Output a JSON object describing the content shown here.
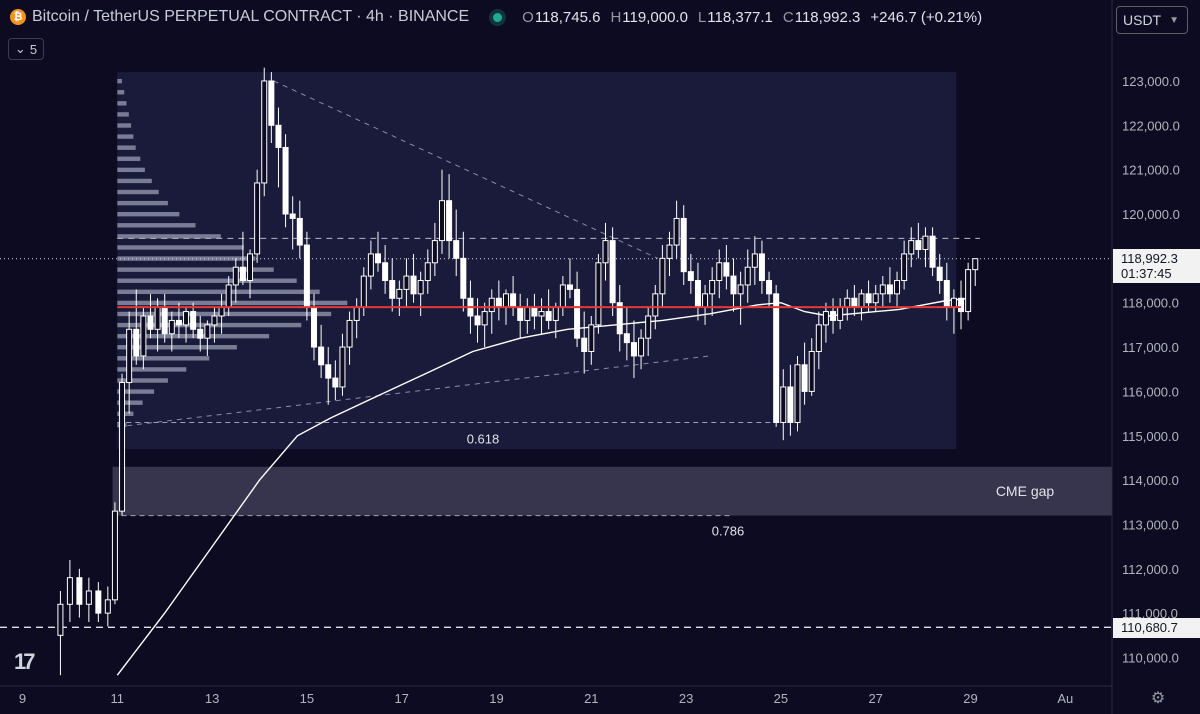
{
  "header": {
    "coin_symbol": "₿",
    "title": "Bitcoin / TetherUS PERPETUAL CONTRACT · 4h · BINANCE",
    "open_label": "O",
    "open": "118,745.6",
    "high_label": "H",
    "high": "119,000.0",
    "low_label": "L",
    "low": "118,377.1",
    "close_label": "C",
    "close": "118,992.3",
    "change": "+246.7 (+0.21%)"
  },
  "toolbar": {
    "collapse_count": "5",
    "currency": "USDT"
  },
  "price_tag": {
    "price": "118,992.3",
    "countdown": "01:37:45"
  },
  "level_tag": {
    "price": "110,680.7"
  },
  "colors": {
    "background": "#0c0b22",
    "candle": "#ffffff",
    "poc_line": "#e53935",
    "cme_zone": "#3e3d55"
  },
  "chart_data": {
    "type": "candlestick",
    "timeframe": "4h",
    "x_ticks": [
      "9",
      "11",
      "13",
      "15",
      "17",
      "19",
      "21",
      "23",
      "25",
      "27",
      "29",
      "Au"
    ],
    "y_ticks": [
      110000,
      111000,
      112000,
      113000,
      114000,
      115000,
      116000,
      117000,
      118000,
      119000,
      120000,
      121000,
      122000,
      123000
    ],
    "y_tick_labels": [
      "110,000.0",
      "111,000.0",
      "112,000.0",
      "113,000.0",
      "114,000.0",
      "115,000.0",
      "116,000.0",
      "117,000.0",
      "118,000.0",
      "119,000.0",
      "120,000.0",
      "121,000.0",
      "122,000.0",
      "123,000.0"
    ],
    "ylim": [
      109600,
      124000
    ],
    "xlim": [
      9,
      31.6
    ],
    "annotations": {
      "cme_gap": {
        "label": "CME gap",
        "from": 113200,
        "to": 114300,
        "start_day": 10.9
      },
      "fib_0618": {
        "label": "0.618",
        "price": 115300,
        "from_day": 11,
        "to_day": 25
      },
      "fib_0786": {
        "label": "0.786",
        "price": 113200,
        "from_day": 10.9,
        "to_day": 24
      },
      "resistance_dashed": {
        "price": 119450,
        "from_day": 11,
        "to_day": 29.2
      },
      "poc_line": {
        "price": 117900,
        "from_day": 11,
        "to_day": 28.8
      },
      "level_dashed": {
        "price": 110680.7
      },
      "last_price_dotted": {
        "price": 118992.3
      },
      "range_box": {
        "from_day": 11,
        "to_day": 28.7,
        "top": 123200,
        "bottom": 114700
      },
      "trend_top": {
        "from": [
          14.3,
          123000
        ],
        "to": [
          22.4,
          119000
        ]
      },
      "trend_bottom": {
        "from": [
          11,
          115200
        ],
        "to": [
          23.5,
          116800
        ]
      }
    },
    "moving_average": [
      [
        11,
        109600
      ],
      [
        12,
        111000
      ],
      [
        13,
        112500
      ],
      [
        14,
        114000
      ],
      [
        14.8,
        115000
      ],
      [
        15.5,
        115400
      ],
      [
        16.5,
        115900
      ],
      [
        17.5,
        116400
      ],
      [
        18.5,
        116900
      ],
      [
        19.5,
        117200
      ],
      [
        20.5,
        117400
      ],
      [
        21.5,
        117500
      ],
      [
        22.5,
        117600
      ],
      [
        23.5,
        117750
      ],
      [
        24.5,
        117950
      ],
      [
        25,
        118000
      ],
      [
        25.5,
        117800
      ],
      [
        26,
        117700
      ],
      [
        26.5,
        117750
      ],
      [
        27,
        117800
      ],
      [
        27.5,
        117850
      ],
      [
        28,
        117950
      ],
      [
        28.5,
        118050
      ],
      [
        29,
        118100
      ]
    ],
    "candles": [
      [
        9.8,
        110500,
        111500,
        109600,
        111200
      ],
      [
        10,
        111200,
        112200,
        110800,
        111800
      ],
      [
        10.2,
        111800,
        112000,
        110900,
        111200
      ],
      [
        10.4,
        111200,
        111800,
        110800,
        111500
      ],
      [
        10.6,
        111500,
        111700,
        110800,
        111000
      ],
      [
        10.8,
        111000,
        111600,
        110700,
        111300
      ],
      [
        10.95,
        111300,
        113500,
        111200,
        113300
      ],
      [
        11.1,
        113300,
        116400,
        113200,
        116200
      ],
      [
        11.25,
        116200,
        117800,
        115500,
        117400
      ],
      [
        11.4,
        117400,
        118300,
        116600,
        116800
      ],
      [
        11.55,
        116800,
        117900,
        116500,
        117700
      ],
      [
        11.7,
        117700,
        118200,
        117200,
        117400
      ],
      [
        11.85,
        117400,
        118100,
        116900,
        117900
      ],
      [
        12,
        117900,
        118200,
        117100,
        117300
      ],
      [
        12.15,
        117300,
        117800,
        116900,
        117600
      ],
      [
        12.3,
        117600,
        118000,
        117200,
        117500
      ],
      [
        12.45,
        117500,
        117900,
        117100,
        117800
      ],
      [
        12.6,
        117800,
        118000,
        117200,
        117400
      ],
      [
        12.75,
        117400,
        117700,
        116900,
        117200
      ],
      [
        12.9,
        117200,
        117600,
        116800,
        117500
      ],
      [
        13.05,
        117500,
        117900,
        117100,
        117700
      ],
      [
        13.2,
        117700,
        118200,
        117300,
        117900
      ],
      [
        13.35,
        117900,
        118600,
        117700,
        118400
      ],
      [
        13.5,
        118400,
        119000,
        118000,
        118800
      ],
      [
        13.65,
        118800,
        119600,
        118400,
        118500
      ],
      [
        13.8,
        118500,
        119200,
        118100,
        119100
      ],
      [
        13.95,
        119100,
        121000,
        118900,
        120700
      ],
      [
        14.1,
        120700,
        123300,
        120400,
        123000
      ],
      [
        14.25,
        123000,
        123200,
        121600,
        122000
      ],
      [
        14.4,
        122000,
        122400,
        120600,
        121500
      ],
      [
        14.55,
        121500,
        121800,
        119700,
        120000
      ],
      [
        14.7,
        120000,
        120400,
        119200,
        119900
      ],
      [
        14.85,
        119900,
        120300,
        119000,
        119300
      ],
      [
        15,
        119300,
        119600,
        117600,
        117900
      ],
      [
        15.15,
        117900,
        118200,
        116700,
        117000
      ],
      [
        15.3,
        117000,
        117500,
        116300,
        116600
      ],
      [
        15.45,
        116600,
        117000,
        115700,
        116300
      ],
      [
        15.6,
        116300,
        116700,
        115800,
        116100
      ],
      [
        15.75,
        116100,
        117300,
        115900,
        117000
      ],
      [
        15.9,
        117000,
        117800,
        116600,
        117600
      ],
      [
        16.05,
        117600,
        118100,
        117200,
        117900
      ],
      [
        16.2,
        117900,
        118800,
        117700,
        118600
      ],
      [
        16.35,
        118600,
        119400,
        118300,
        119100
      ],
      [
        16.5,
        119100,
        119600,
        118700,
        118900
      ],
      [
        16.65,
        118900,
        119300,
        118200,
        118500
      ],
      [
        16.8,
        118500,
        119000,
        117800,
        118100
      ],
      [
        16.95,
        118100,
        118500,
        117700,
        118300
      ],
      [
        17.1,
        118300,
        119000,
        117900,
        118600
      ],
      [
        17.25,
        118600,
        119100,
        118000,
        118200
      ],
      [
        17.4,
        118200,
        118700,
        117700,
        118500
      ],
      [
        17.55,
        118500,
        119200,
        118200,
        118900
      ],
      [
        17.7,
        118900,
        119800,
        118600,
        119400
      ],
      [
        17.85,
        119400,
        121000,
        119100,
        120300
      ],
      [
        18,
        120300,
        120900,
        119000,
        119400
      ],
      [
        18.15,
        119400,
        120100,
        118600,
        119000
      ],
      [
        18.3,
        119000,
        119600,
        117800,
        118100
      ],
      [
        18.45,
        118100,
        118500,
        117300,
        117700
      ],
      [
        18.6,
        117700,
        118100,
        117100,
        117500
      ],
      [
        18.75,
        117500,
        118000,
        117000,
        117800
      ],
      [
        18.9,
        117800,
        118300,
        117300,
        118100
      ],
      [
        19.05,
        118100,
        118500,
        117600,
        117900
      ],
      [
        19.2,
        117900,
        118300,
        117500,
        118200
      ],
      [
        19.35,
        118200,
        118600,
        117700,
        117900
      ],
      [
        19.5,
        117900,
        118200,
        117200,
        117600
      ],
      [
        19.65,
        117600,
        118100,
        117300,
        117900
      ],
      [
        19.8,
        117900,
        118200,
        117400,
        117700
      ],
      [
        19.95,
        117700,
        118100,
        117300,
        117800
      ],
      [
        20.1,
        117800,
        118300,
        117400,
        117600
      ],
      [
        20.25,
        117600,
        118000,
        117200,
        117900
      ],
      [
        20.4,
        117900,
        118600,
        117700,
        118400
      ],
      [
        20.55,
        118400,
        119000,
        118100,
        118300
      ],
      [
        20.7,
        118300,
        118700,
        117000,
        117200
      ],
      [
        20.85,
        117200,
        117800,
        116400,
        116900
      ],
      [
        21,
        116900,
        117700,
        116600,
        117500
      ],
      [
        21.15,
        117500,
        119100,
        117300,
        118900
      ],
      [
        21.3,
        118900,
        119800,
        118500,
        119400
      ],
      [
        21.45,
        119400,
        119700,
        117700,
        118000
      ],
      [
        21.6,
        118000,
        118400,
        116900,
        117300
      ],
      [
        21.75,
        117300,
        117900,
        116700,
        117100
      ],
      [
        21.9,
        117100,
        117600,
        116300,
        116800
      ],
      [
        22.05,
        116800,
        117400,
        116500,
        117200
      ],
      [
        22.2,
        117200,
        117900,
        116800,
        117700
      ],
      [
        22.35,
        117700,
        118400,
        117400,
        118200
      ],
      [
        22.5,
        118200,
        119300,
        117900,
        119000
      ],
      [
        22.65,
        119000,
        119600,
        118600,
        119300
      ],
      [
        22.8,
        119300,
        120300,
        119000,
        119900
      ],
      [
        22.95,
        119900,
        120200,
        118400,
        118700
      ],
      [
        23.1,
        118700,
        119100,
        118200,
        118500
      ],
      [
        23.25,
        118500,
        118900,
        117600,
        117900
      ],
      [
        23.4,
        117900,
        118400,
        117500,
        118200
      ],
      [
        23.55,
        118200,
        118800,
        117700,
        118500
      ],
      [
        23.7,
        118500,
        119200,
        118100,
        118900
      ],
      [
        23.85,
        118900,
        119300,
        118300,
        118600
      ],
      [
        24,
        118600,
        119000,
        117800,
        118200
      ],
      [
        24.15,
        118200,
        118700,
        117500,
        118400
      ],
      [
        24.3,
        118400,
        119200,
        118000,
        118800
      ],
      [
        24.45,
        118800,
        119500,
        118400,
        119100
      ],
      [
        24.6,
        119100,
        119400,
        118200,
        118500
      ],
      [
        24.75,
        118500,
        118700,
        117900,
        118200
      ],
      [
        24.9,
        118200,
        118400,
        115200,
        115300
      ],
      [
        25.05,
        115300,
        116500,
        114900,
        116100
      ],
      [
        25.2,
        116100,
        116600,
        115000,
        115300
      ],
      [
        25.35,
        115300,
        116800,
        115100,
        116600
      ],
      [
        25.5,
        116600,
        117100,
        115700,
        116000
      ],
      [
        25.65,
        116000,
        117200,
        115900,
        116900
      ],
      [
        25.8,
        116900,
        117800,
        116500,
        117500
      ],
      [
        25.95,
        117500,
        118000,
        117100,
        117800
      ],
      [
        26.1,
        117800,
        118100,
        117300,
        117600
      ],
      [
        26.25,
        117600,
        118100,
        117400,
        117900
      ],
      [
        26.4,
        117900,
        118300,
        117600,
        118100
      ],
      [
        26.55,
        118100,
        118400,
        117700,
        117900
      ],
      [
        26.7,
        117900,
        118300,
        117600,
        118200
      ],
      [
        26.85,
        118200,
        118500,
        117800,
        118000
      ],
      [
        27,
        118000,
        118400,
        117800,
        118200
      ],
      [
        27.15,
        118200,
        118600,
        117900,
        118400
      ],
      [
        27.3,
        118400,
        118800,
        118000,
        118200
      ],
      [
        27.45,
        118200,
        118700,
        117900,
        118500
      ],
      [
        27.6,
        118500,
        119400,
        118300,
        119100
      ],
      [
        27.75,
        119100,
        119700,
        118800,
        119400
      ],
      [
        27.9,
        119400,
        119800,
        119000,
        119200
      ],
      [
        28.05,
        119200,
        119700,
        118800,
        119500
      ],
      [
        28.2,
        119500,
        119700,
        118600,
        118800
      ],
      [
        28.35,
        118800,
        119100,
        118200,
        118500
      ],
      [
        28.5,
        118500,
        118900,
        117600,
        117900
      ],
      [
        28.65,
        117900,
        118300,
        117300,
        118100
      ],
      [
        28.8,
        118100,
        118500,
        117400,
        117800
      ],
      [
        28.95,
        117800,
        118900,
        117600,
        118745.6
      ],
      [
        29.1,
        118745.6,
        119000,
        118377.1,
        118992.3
      ]
    ],
    "volume_profile": [
      [
        123000,
        0.02
      ],
      [
        122750,
        0.03
      ],
      [
        122500,
        0.04
      ],
      [
        122250,
        0.05
      ],
      [
        122000,
        0.06
      ],
      [
        121750,
        0.07
      ],
      [
        121500,
        0.08
      ],
      [
        121250,
        0.1
      ],
      [
        121000,
        0.12
      ],
      [
        120750,
        0.15
      ],
      [
        120500,
        0.18
      ],
      [
        120250,
        0.22
      ],
      [
        120000,
        0.27
      ],
      [
        119750,
        0.34
      ],
      [
        119500,
        0.45
      ],
      [
        119250,
        0.55
      ],
      [
        119000,
        0.6
      ],
      [
        118750,
        0.68
      ],
      [
        118500,
        0.78
      ],
      [
        118250,
        0.88
      ],
      [
        118000,
        1.0
      ],
      [
        117750,
        0.93
      ],
      [
        117500,
        0.8
      ],
      [
        117250,
        0.66
      ],
      [
        117000,
        0.52
      ],
      [
        116750,
        0.4
      ],
      [
        116500,
        0.3
      ],
      [
        116250,
        0.22
      ],
      [
        116000,
        0.16
      ],
      [
        115750,
        0.11
      ],
      [
        115500,
        0.07
      ],
      [
        115250,
        0.04
      ]
    ]
  }
}
